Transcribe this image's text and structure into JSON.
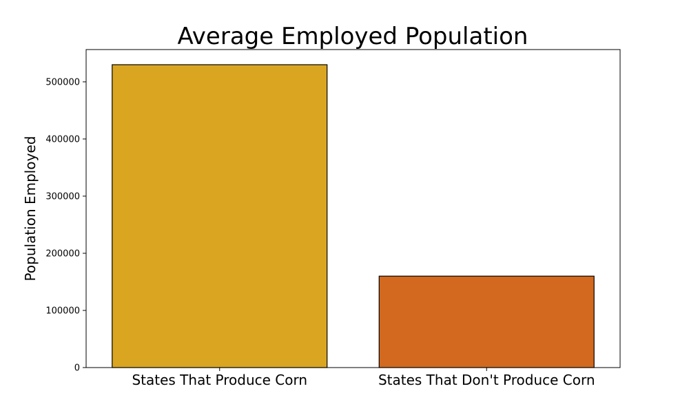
{
  "chart_data": {
    "type": "bar",
    "title": "Average Employed Population",
    "xlabel": "",
    "ylabel": "Population Employed",
    "categories": [
      "States That Produce Corn",
      "States That Don't Produce Corn"
    ],
    "values": [
      530000,
      160000
    ],
    "colors": [
      "#daa520",
      "#d2691e"
    ],
    "edge_color": "#000000",
    "ylim": [
      0,
      556500
    ],
    "yticks": [
      0,
      100000,
      200000,
      300000,
      400000,
      500000
    ],
    "ytick_labels": [
      "0",
      "100000",
      "200000",
      "300000",
      "400000",
      "500000"
    ],
    "grid": false,
    "legend": "none"
  }
}
